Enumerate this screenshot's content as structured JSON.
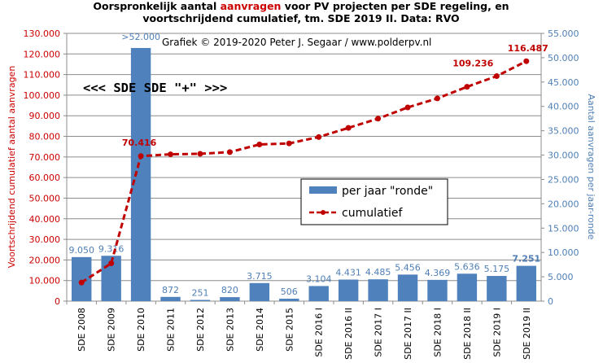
{
  "title": {
    "line1_pre": "Oorspronkelijk  aantal ",
    "line1_hl": "aanvragen",
    "line1_post": " voor PV projecten per SDE regeling,  en",
    "line2": "voortschrijdend  cumulatief, tm. SDE 2019 II. Data: RVO"
  },
  "credit": "Grafiek  © 2019-2020 Peter J. Segaar / www.polderpv.nl",
  "annotation": "<<< SDE   SDE \"+\" >>>",
  "colors": {
    "bar": "#4f81bd",
    "line": "#c00000",
    "left_axis": "#cc0000",
    "right_axis": "#4f7fb5"
  },
  "chart_data": {
    "type": "bar",
    "categories": [
      "SDE 2008",
      "SDE 2009",
      "SDE 2010",
      "SDE 2011",
      "SDE 2012",
      "SDE 2013",
      "SDE 2014",
      "SDE 2015",
      "SDE 2016 I",
      "SDE 2016 II",
      "SDE 2017 I",
      "SDE 2017 II",
      "SDE 2018 I",
      "SDE 2018 II",
      "SDE 2019 I",
      "SDE 2019 II"
    ],
    "series": [
      {
        "name": "per jaar \"ronde\"",
        "type": "bar",
        "axis": "right",
        "values": [
          9050,
          9316,
          52000,
          872,
          251,
          820,
          3715,
          506,
          3104,
          4431,
          4485,
          5456,
          4369,
          5636,
          5175,
          7251
        ],
        "labels": [
          "9.050",
          "9.316",
          ">52.000",
          "872",
          "251",
          "820",
          "3.715",
          "506",
          "3.104",
          "4.431",
          "4.485",
          "5.456",
          "4.369",
          "5.636",
          "5.175",
          "7.251"
        ]
      },
      {
        "name": "cumulatief",
        "type": "line",
        "axis": "left",
        "values": [
          9050,
          18366,
          70416,
          71288,
          71539,
          72359,
          76074,
          76580,
          79684,
          84115,
          88600,
          94056,
          98425,
          104061,
          109236,
          116487
        ],
        "point_labels": [
          null,
          null,
          "70.416",
          null,
          null,
          null,
          null,
          null,
          null,
          null,
          null,
          null,
          null,
          null,
          "109.236",
          "116.487"
        ]
      }
    ],
    "y_left": {
      "label": "Voortschrijdend cumulatief aantal aanvragen",
      "range": [
        0,
        130000
      ],
      "ticks": [
        "0",
        "10.000",
        "20.000",
        "30.000",
        "40.000",
        "50.000",
        "60.000",
        "70.000",
        "80.000",
        "90.000",
        "100.000",
        "110.000",
        "120.000",
        "130.000"
      ]
    },
    "y_right": {
      "label": "Aantal aanvragen per jaar-ronde",
      "range": [
        0,
        55000
      ],
      "ticks": [
        "0",
        "5.000",
        "10.000",
        "15.000",
        "20.000",
        "25.000",
        "30.000",
        "35.000",
        "40.000",
        "45.000",
        "50.000",
        "55.000"
      ]
    },
    "grid": true,
    "legend": "center-right"
  }
}
